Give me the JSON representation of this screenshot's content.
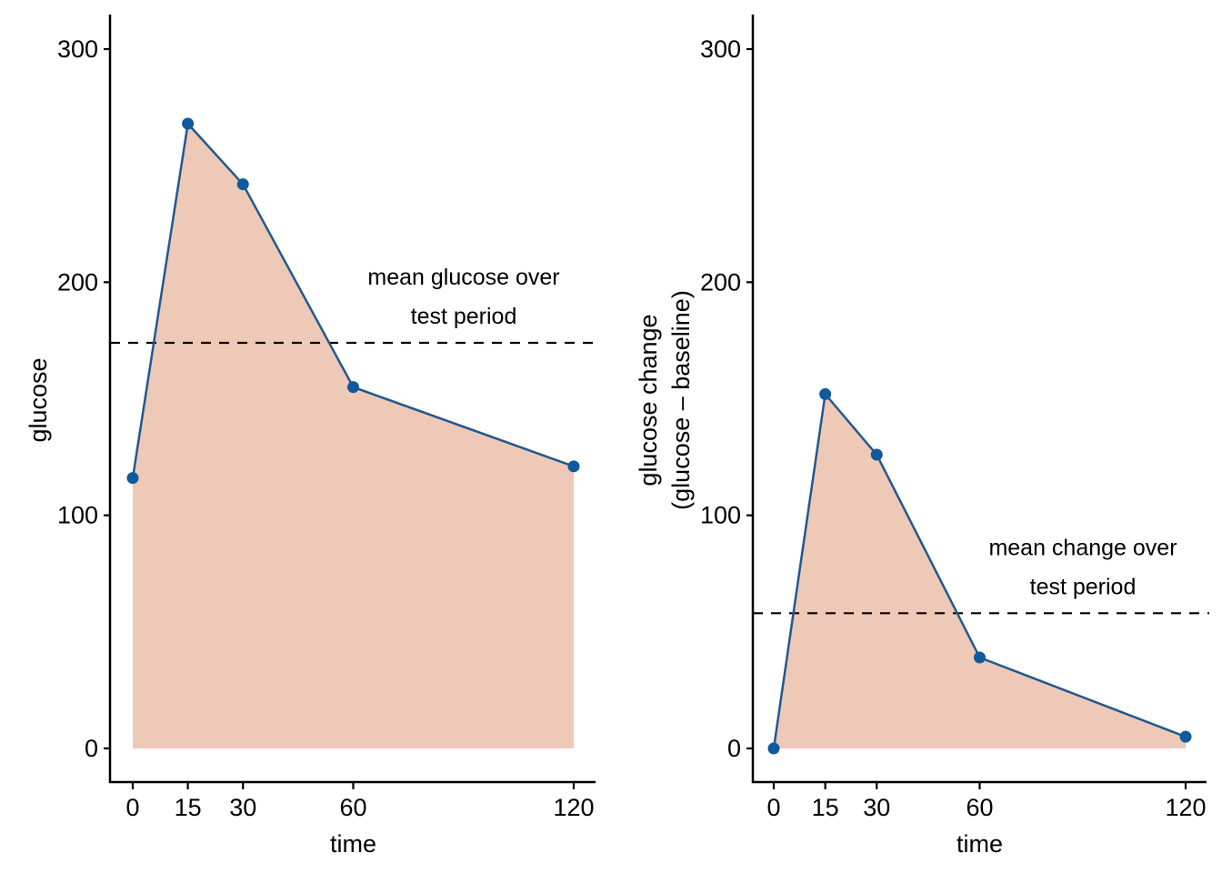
{
  "chart_data": [
    {
      "type": "area",
      "title": "",
      "xlabel": "time",
      "ylabel": [
        "glucose"
      ],
      "x": [
        0,
        15,
        30,
        60,
        120
      ],
      "series": [
        {
          "name": "glucose",
          "values": [
            116,
            268,
            242,
            155,
            121
          ]
        }
      ],
      "xticks": [
        0,
        15,
        30,
        60,
        120
      ],
      "xtick_labels": [
        "0",
        "15",
        "30",
        "60",
        "120"
      ],
      "yticks": [
        0,
        100,
        200,
        300
      ],
      "ytick_labels": [
        "0",
        "100",
        "200",
        "300"
      ],
      "xlim": [
        -5,
        125
      ],
      "ylim": [
        -15,
        315
      ],
      "reference_line": {
        "value": 174,
        "style": "dashed"
      },
      "annotation": [
        "mean glucose over",
        "test period"
      ],
      "grid": false,
      "colors": {
        "fill": "#efc9b7",
        "line": "#21588f",
        "point": "#0e5a9c",
        "ref": "#000000"
      }
    },
    {
      "type": "area",
      "title": "",
      "xlabel": "time",
      "ylabel": [
        "glucose change",
        "(glucose – baseline)"
      ],
      "x": [
        0,
        15,
        30,
        60,
        120
      ],
      "series": [
        {
          "name": "glucose change",
          "values": [
            0,
            152,
            126,
            39,
            5
          ]
        }
      ],
      "xticks": [
        0,
        15,
        30,
        60,
        120
      ],
      "xtick_labels": [
        "0",
        "15",
        "30",
        "60",
        "120"
      ],
      "yticks": [
        0,
        100,
        200,
        300
      ],
      "ytick_labels": [
        "0",
        "100",
        "200",
        "300"
      ],
      "xlim": [
        -5,
        125
      ],
      "ylim": [
        -15,
        315
      ],
      "reference_line": {
        "value": 58,
        "style": "dashed"
      },
      "annotation": [
        "mean change over",
        "test period"
      ],
      "grid": false,
      "colors": {
        "fill": "#efc9b7",
        "line": "#21588f",
        "point": "#0e5a9c",
        "ref": "#000000"
      }
    }
  ]
}
